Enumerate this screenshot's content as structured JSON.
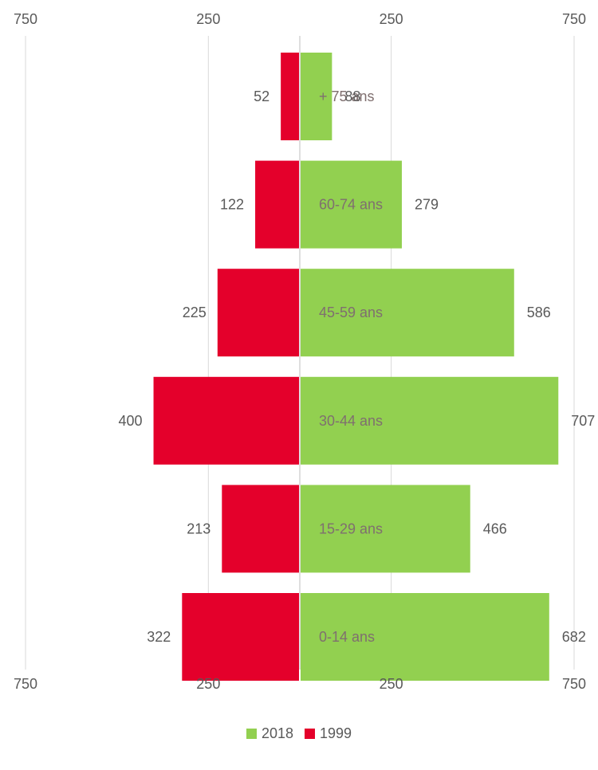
{
  "chart_data": {
    "type": "bar",
    "orientation": "horizontal",
    "subtype": "population-pyramid",
    "title": "",
    "xlabel": "",
    "ylabel": "",
    "xlim": [
      -750,
      750
    ],
    "grid": true,
    "legend_position": "bottom",
    "axis_ticks": [
      -750,
      -250,
      250,
      750
    ],
    "axis_tick_labels": [
      "750",
      "250",
      "250",
      "750"
    ],
    "categories": [
      "0-14 ans",
      "15-29 ans",
      "30-44 ans",
      "45-59 ans",
      "60-74 ans",
      "+ 75 ans"
    ],
    "series": [
      {
        "name": "2018",
        "side": "right",
        "color": "#92d050",
        "values": [
          682,
          466,
          707,
          586,
          279,
          88
        ]
      },
      {
        "name": "1999",
        "side": "left",
        "color": "#e4002b",
        "values": [
          322,
          213,
          400,
          225,
          122,
          52
        ]
      }
    ]
  },
  "legend": {
    "items": [
      {
        "label": "2018",
        "color": "#92d050"
      },
      {
        "label": "1999",
        "color": "#e4002b"
      }
    ]
  }
}
